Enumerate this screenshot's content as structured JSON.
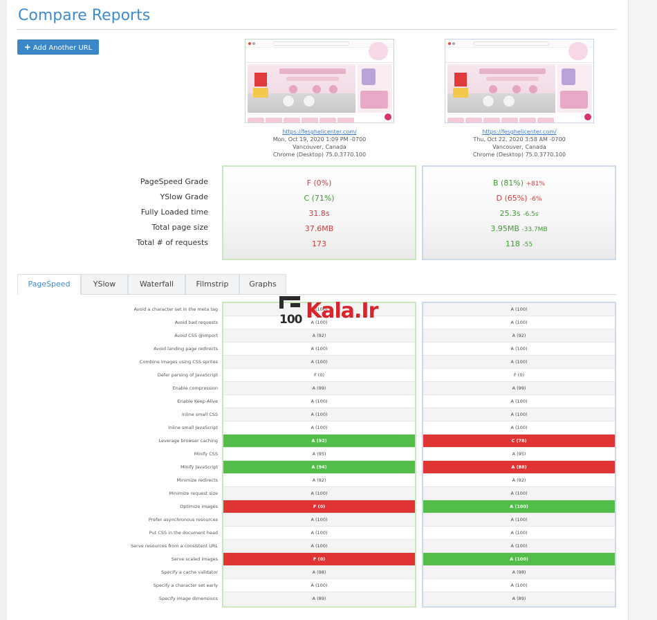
{
  "page": {
    "title": "Compare Reports"
  },
  "toolbar": {
    "add_url_label": "Add Another URL"
  },
  "reports": [
    {
      "url": "https://fesghelicenter.com/",
      "date": "Mon, Oct 19, 2020 1:09 PM -0700",
      "location": "Vancouver, Canada",
      "browser": "Chrome (Desktop) 75.0.3770.100"
    },
    {
      "url": "https://fesghelicenter.com/",
      "date": "Thu, Oct 22, 2020 3:58 AM -0700",
      "location": "Vancouver, Canada",
      "browser": "Chrome (Desktop) 75.0.3770.100"
    }
  ],
  "summary": {
    "labels": [
      "PageSpeed Grade",
      "YSlow Grade",
      "Fully Loaded time",
      "Total page size",
      "Total # of requests"
    ],
    "a": [
      {
        "value": "F (0%)",
        "color": "#d23a3a"
      },
      {
        "value": "C (71%)",
        "color": "#3f9a32"
      },
      {
        "value": "31.8s",
        "color": "#d23a3a"
      },
      {
        "value": "37.6MB",
        "color": "#d23a3a"
      },
      {
        "value": "173",
        "color": "#d23a3a"
      }
    ],
    "b": [
      {
        "value": "B (81%)",
        "delta": "+81%",
        "color": "#3f9a32",
        "delta_color": "#d23a3a"
      },
      {
        "value": "D (65%)",
        "delta": "-6%",
        "color": "#d23a3a",
        "delta_color": "#d23a3a"
      },
      {
        "value": "25.3s",
        "delta": "-6.5s",
        "color": "#3f9a32",
        "delta_color": "#3f9a32"
      },
      {
        "value": "3.95MB",
        "delta": "-33.7MB",
        "color": "#3f9a32",
        "delta_color": "#3f9a32"
      },
      {
        "value": "118",
        "delta": "-55",
        "color": "#3f9a32",
        "delta_color": "#3f9a32"
      }
    ]
  },
  "tabs": [
    "PageSpeed",
    "YSlow",
    "Waterfall",
    "Filmstrip",
    "Graphs"
  ],
  "active_tab": "PageSpeed",
  "rules": {
    "labels": [
      "Avoid a character set in the meta tag",
      "Avoid bad requests",
      "Avoid CSS @import",
      "Avoid landing page redirects",
      "Combine images using CSS sprites",
      "Defer parsing of JavaScript",
      "Enable compression",
      "Enable Keep-Alive",
      "Inline small CSS",
      "Inline small JavaScript",
      "Leverage browser caching",
      "Minify CSS",
      "Minify JavaScript",
      "Minimize redirects",
      "Minimize request size",
      "Optimize images",
      "Prefer asynchronous resources",
      "Put CSS in the document head",
      "Serve resources from a consistent URL",
      "Serve scaled images",
      "Specify a cache validator",
      "Specify a character set early",
      "Specify image dimensions"
    ],
    "a": [
      {
        "v": "A (100)",
        "s": ""
      },
      {
        "v": "A (100)",
        "s": ""
      },
      {
        "v": "A (92)",
        "s": ""
      },
      {
        "v": "A (100)",
        "s": ""
      },
      {
        "v": "A (100)",
        "s": ""
      },
      {
        "v": "F (0)",
        "s": ""
      },
      {
        "v": "A (99)",
        "s": ""
      },
      {
        "v": "A (100)",
        "s": ""
      },
      {
        "v": "A (100)",
        "s": ""
      },
      {
        "v": "A (100)",
        "s": ""
      },
      {
        "v": "A (92)",
        "s": "green"
      },
      {
        "v": "A (95)",
        "s": ""
      },
      {
        "v": "A (94)",
        "s": "green"
      },
      {
        "v": "A (92)",
        "s": ""
      },
      {
        "v": "A (100)",
        "s": ""
      },
      {
        "v": "F (0)",
        "s": "red"
      },
      {
        "v": "A (100)",
        "s": ""
      },
      {
        "v": "A (100)",
        "s": ""
      },
      {
        "v": "A (100)",
        "s": ""
      },
      {
        "v": "F (0)",
        "s": "red"
      },
      {
        "v": "A (98)",
        "s": ""
      },
      {
        "v": "A (100)",
        "s": ""
      },
      {
        "v": "A (89)",
        "s": ""
      }
    ],
    "b": [
      {
        "v": "A (100)",
        "s": ""
      },
      {
        "v": "A (100)",
        "s": ""
      },
      {
        "v": "A (92)",
        "s": ""
      },
      {
        "v": "A (100)",
        "s": ""
      },
      {
        "v": "A (100)",
        "s": ""
      },
      {
        "v": "F (0)",
        "s": ""
      },
      {
        "v": "A (99)",
        "s": ""
      },
      {
        "v": "A (100)",
        "s": ""
      },
      {
        "v": "A (100)",
        "s": ""
      },
      {
        "v": "A (100)",
        "s": ""
      },
      {
        "v": "C (78)",
        "s": "red"
      },
      {
        "v": "A (95)",
        "s": ""
      },
      {
        "v": "A (88)",
        "s": "red"
      },
      {
        "v": "A (92)",
        "s": ""
      },
      {
        "v": "A (100)",
        "s": ""
      },
      {
        "v": "A (100)",
        "s": "green"
      },
      {
        "v": "A (100)",
        "s": ""
      },
      {
        "v": "A (100)",
        "s": ""
      },
      {
        "v": "A (100)",
        "s": ""
      },
      {
        "v": "A (100)",
        "s": "green"
      },
      {
        "v": "A (98)",
        "s": ""
      },
      {
        "v": "A (100)",
        "s": ""
      },
      {
        "v": "A (89)",
        "s": ""
      }
    ]
  },
  "watermark": {
    "num": "100",
    "text": "Kala.Ir"
  }
}
